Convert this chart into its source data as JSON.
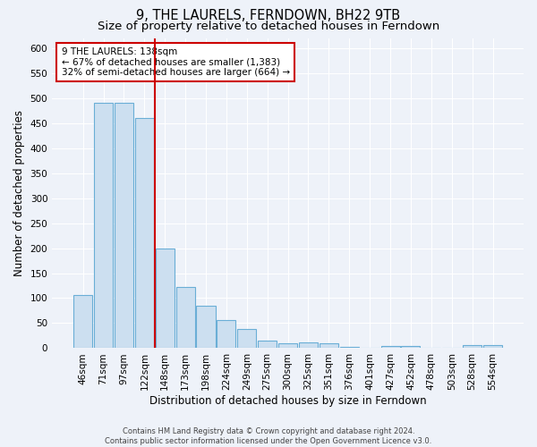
{
  "title": "9, THE LAURELS, FERNDOWN, BH22 9TB",
  "subtitle": "Size of property relative to detached houses in Ferndown",
  "xlabel": "Distribution of detached houses by size in Ferndown",
  "ylabel": "Number of detached properties",
  "categories": [
    "46sqm",
    "71sqm",
    "97sqm",
    "122sqm",
    "148sqm",
    "173sqm",
    "198sqm",
    "224sqm",
    "249sqm",
    "275sqm",
    "300sqm",
    "325sqm",
    "351sqm",
    "376sqm",
    "401sqm",
    "427sqm",
    "452sqm",
    "478sqm",
    "503sqm",
    "528sqm",
    "554sqm"
  ],
  "values": [
    107,
    490,
    490,
    460,
    200,
    122,
    85,
    56,
    38,
    16,
    10,
    11,
    10,
    3,
    0,
    5,
    5,
    0,
    0,
    6,
    6
  ],
  "bar_color": "#ccdff0",
  "bar_edge_color": "#6aaed6",
  "red_line_index": 4,
  "annotation_text": "9 THE LAURELS: 138sqm\n← 67% of detached houses are smaller (1,383)\n32% of semi-detached houses are larger (664) →",
  "annotation_box_color": "#ffffff",
  "annotation_box_edge": "#cc0000",
  "red_line_color": "#cc0000",
  "footer_text": "Contains HM Land Registry data © Crown copyright and database right 2024.\nContains public sector information licensed under the Open Government Licence v3.0.",
  "ylim": [
    0,
    620
  ],
  "yticks": [
    0,
    50,
    100,
    150,
    200,
    250,
    300,
    350,
    400,
    450,
    500,
    550,
    600
  ],
  "background_color": "#eef2f9",
  "grid_color": "#ffffff",
  "title_fontsize": 10.5,
  "subtitle_fontsize": 9.5,
  "axis_label_fontsize": 8.5,
  "tick_fontsize": 7.5,
  "annotation_fontsize": 7.5,
  "footer_fontsize": 6.0
}
